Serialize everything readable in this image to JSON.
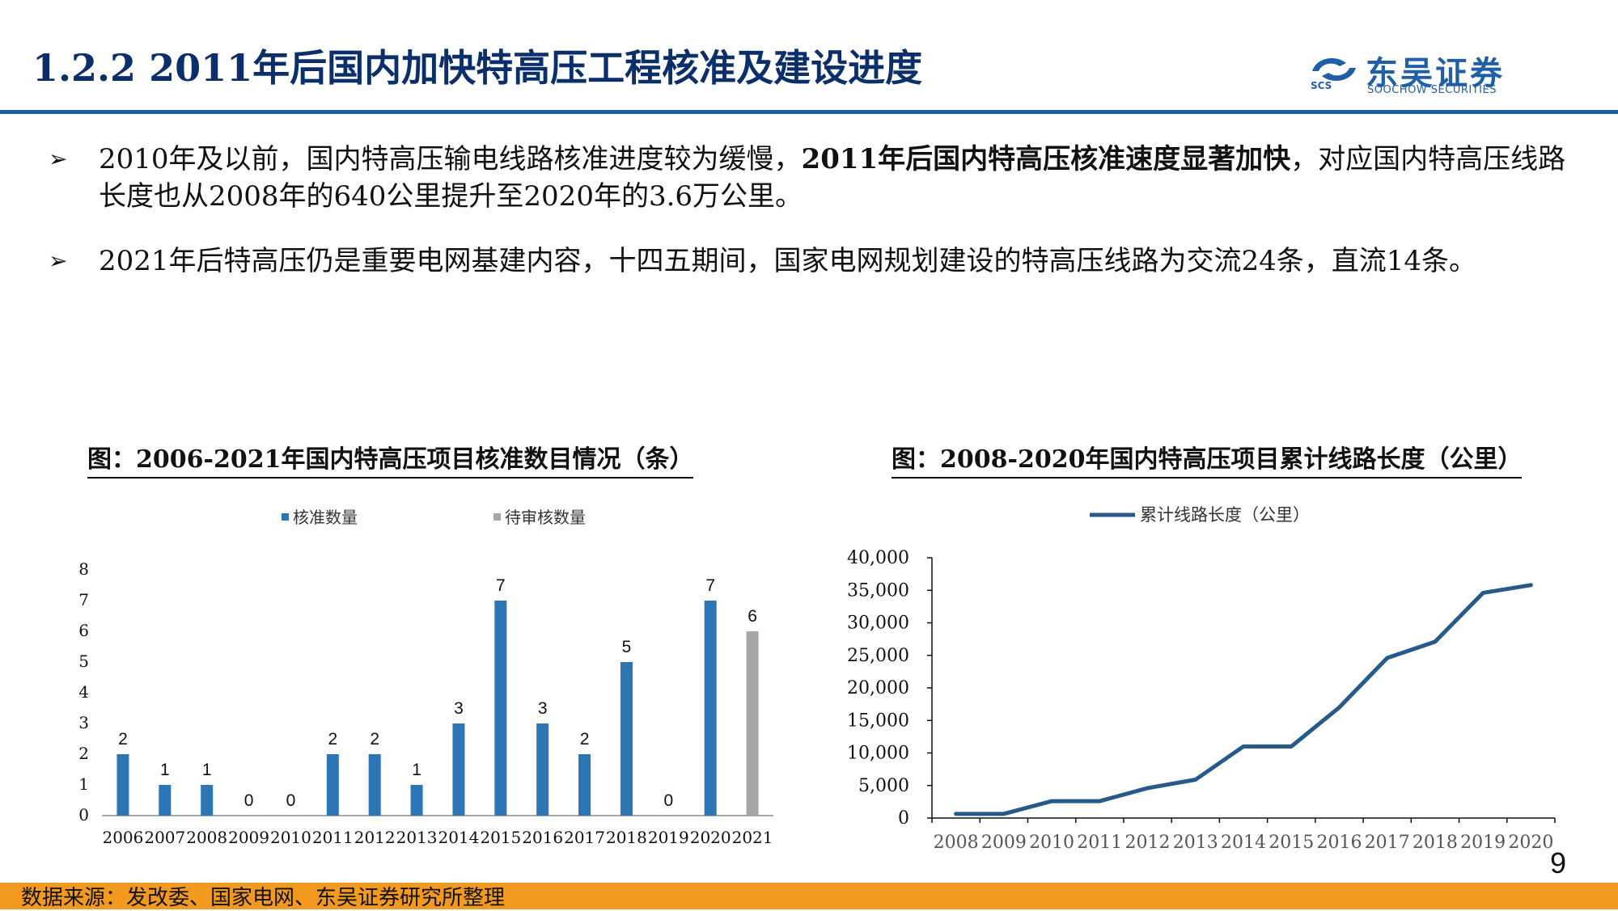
{
  "header": {
    "title": "1.2.2  2011年后国内加快特高压工程核准及建设进度",
    "logo_cn": "东吴证券",
    "logo_en": "SOOCHOW SECURITIES",
    "logo_abbr": "SCS"
  },
  "bullets": [
    {
      "before": "2010年及以前，国内特高压输电线路核准进度较为缓慢，",
      "bold": "2011年后国内特高压核准速度显著加快",
      "after": "，对应国内特高压线路长度也从2008年的640公里提升至2020年的3.6万公里。"
    },
    {
      "before": "2021年后特高压仍是重要电网基建内容，十四五期间，国家电网规划建设的特高压线路为交流24条，直流14条。",
      "bold": "",
      "after": ""
    }
  ],
  "colors": {
    "brand_blue": "#1f5fa8",
    "bar_blue": "#2e75b6",
    "bar_gray": "#a6a6a6",
    "line_blue": "#255a8a",
    "footer_orange": "#f29a1f"
  },
  "chart_data": [
    {
      "type": "bar",
      "title": "图：2006-2021年国内特高压项目核准数目情况（条）",
      "categories": [
        "2006",
        "2007",
        "2008",
        "2009",
        "2010",
        "2011",
        "2012",
        "2013",
        "2014",
        "2015",
        "2016",
        "2017",
        "2018",
        "2019",
        "2020",
        "2021"
      ],
      "series": [
        {
          "name": "核准数量",
          "values": [
            2,
            1,
            1,
            0,
            0,
            2,
            2,
            1,
            3,
            7,
            3,
            2,
            5,
            0,
            7,
            null
          ],
          "color": "#2e75b6"
        },
        {
          "name": "待审核数量",
          "values": [
            null,
            null,
            null,
            null,
            null,
            null,
            null,
            null,
            null,
            null,
            null,
            null,
            null,
            null,
            null,
            6
          ],
          "color": "#a6a6a6"
        }
      ],
      "ylim": [
        0,
        8
      ],
      "yticks": [
        "0",
        "1",
        "2",
        "3",
        "4",
        "5",
        "6",
        "7",
        "8"
      ],
      "legend": "top-center",
      "grid": false
    },
    {
      "type": "line",
      "title": "图：2008-2020年国内特高压项目累计线路长度（公里）",
      "x": [
        "2008",
        "2009",
        "2010",
        "2011",
        "2012",
        "2013",
        "2014",
        "2015",
        "2016",
        "2017",
        "2018",
        "2019",
        "2020"
      ],
      "series": [
        {
          "name": "累计线路长度（公里）",
          "values": [
            640,
            640,
            2600,
            2600,
            4600,
            5900,
            11000,
            11000,
            17000,
            24600,
            27100,
            34600,
            35800
          ],
          "color": "#255a8a"
        }
      ],
      "ylim": [
        0,
        40000
      ],
      "yticks": [
        "0",
        "5,000",
        "10,000",
        "15,000",
        "20,000",
        "25,000",
        "30,000",
        "35,000",
        "40,000"
      ],
      "legend": "top-center",
      "grid": false
    }
  ],
  "footer": {
    "source": "数据来源：发改委、国家电网、东吴证券研究所整理",
    "page_number": "9"
  }
}
